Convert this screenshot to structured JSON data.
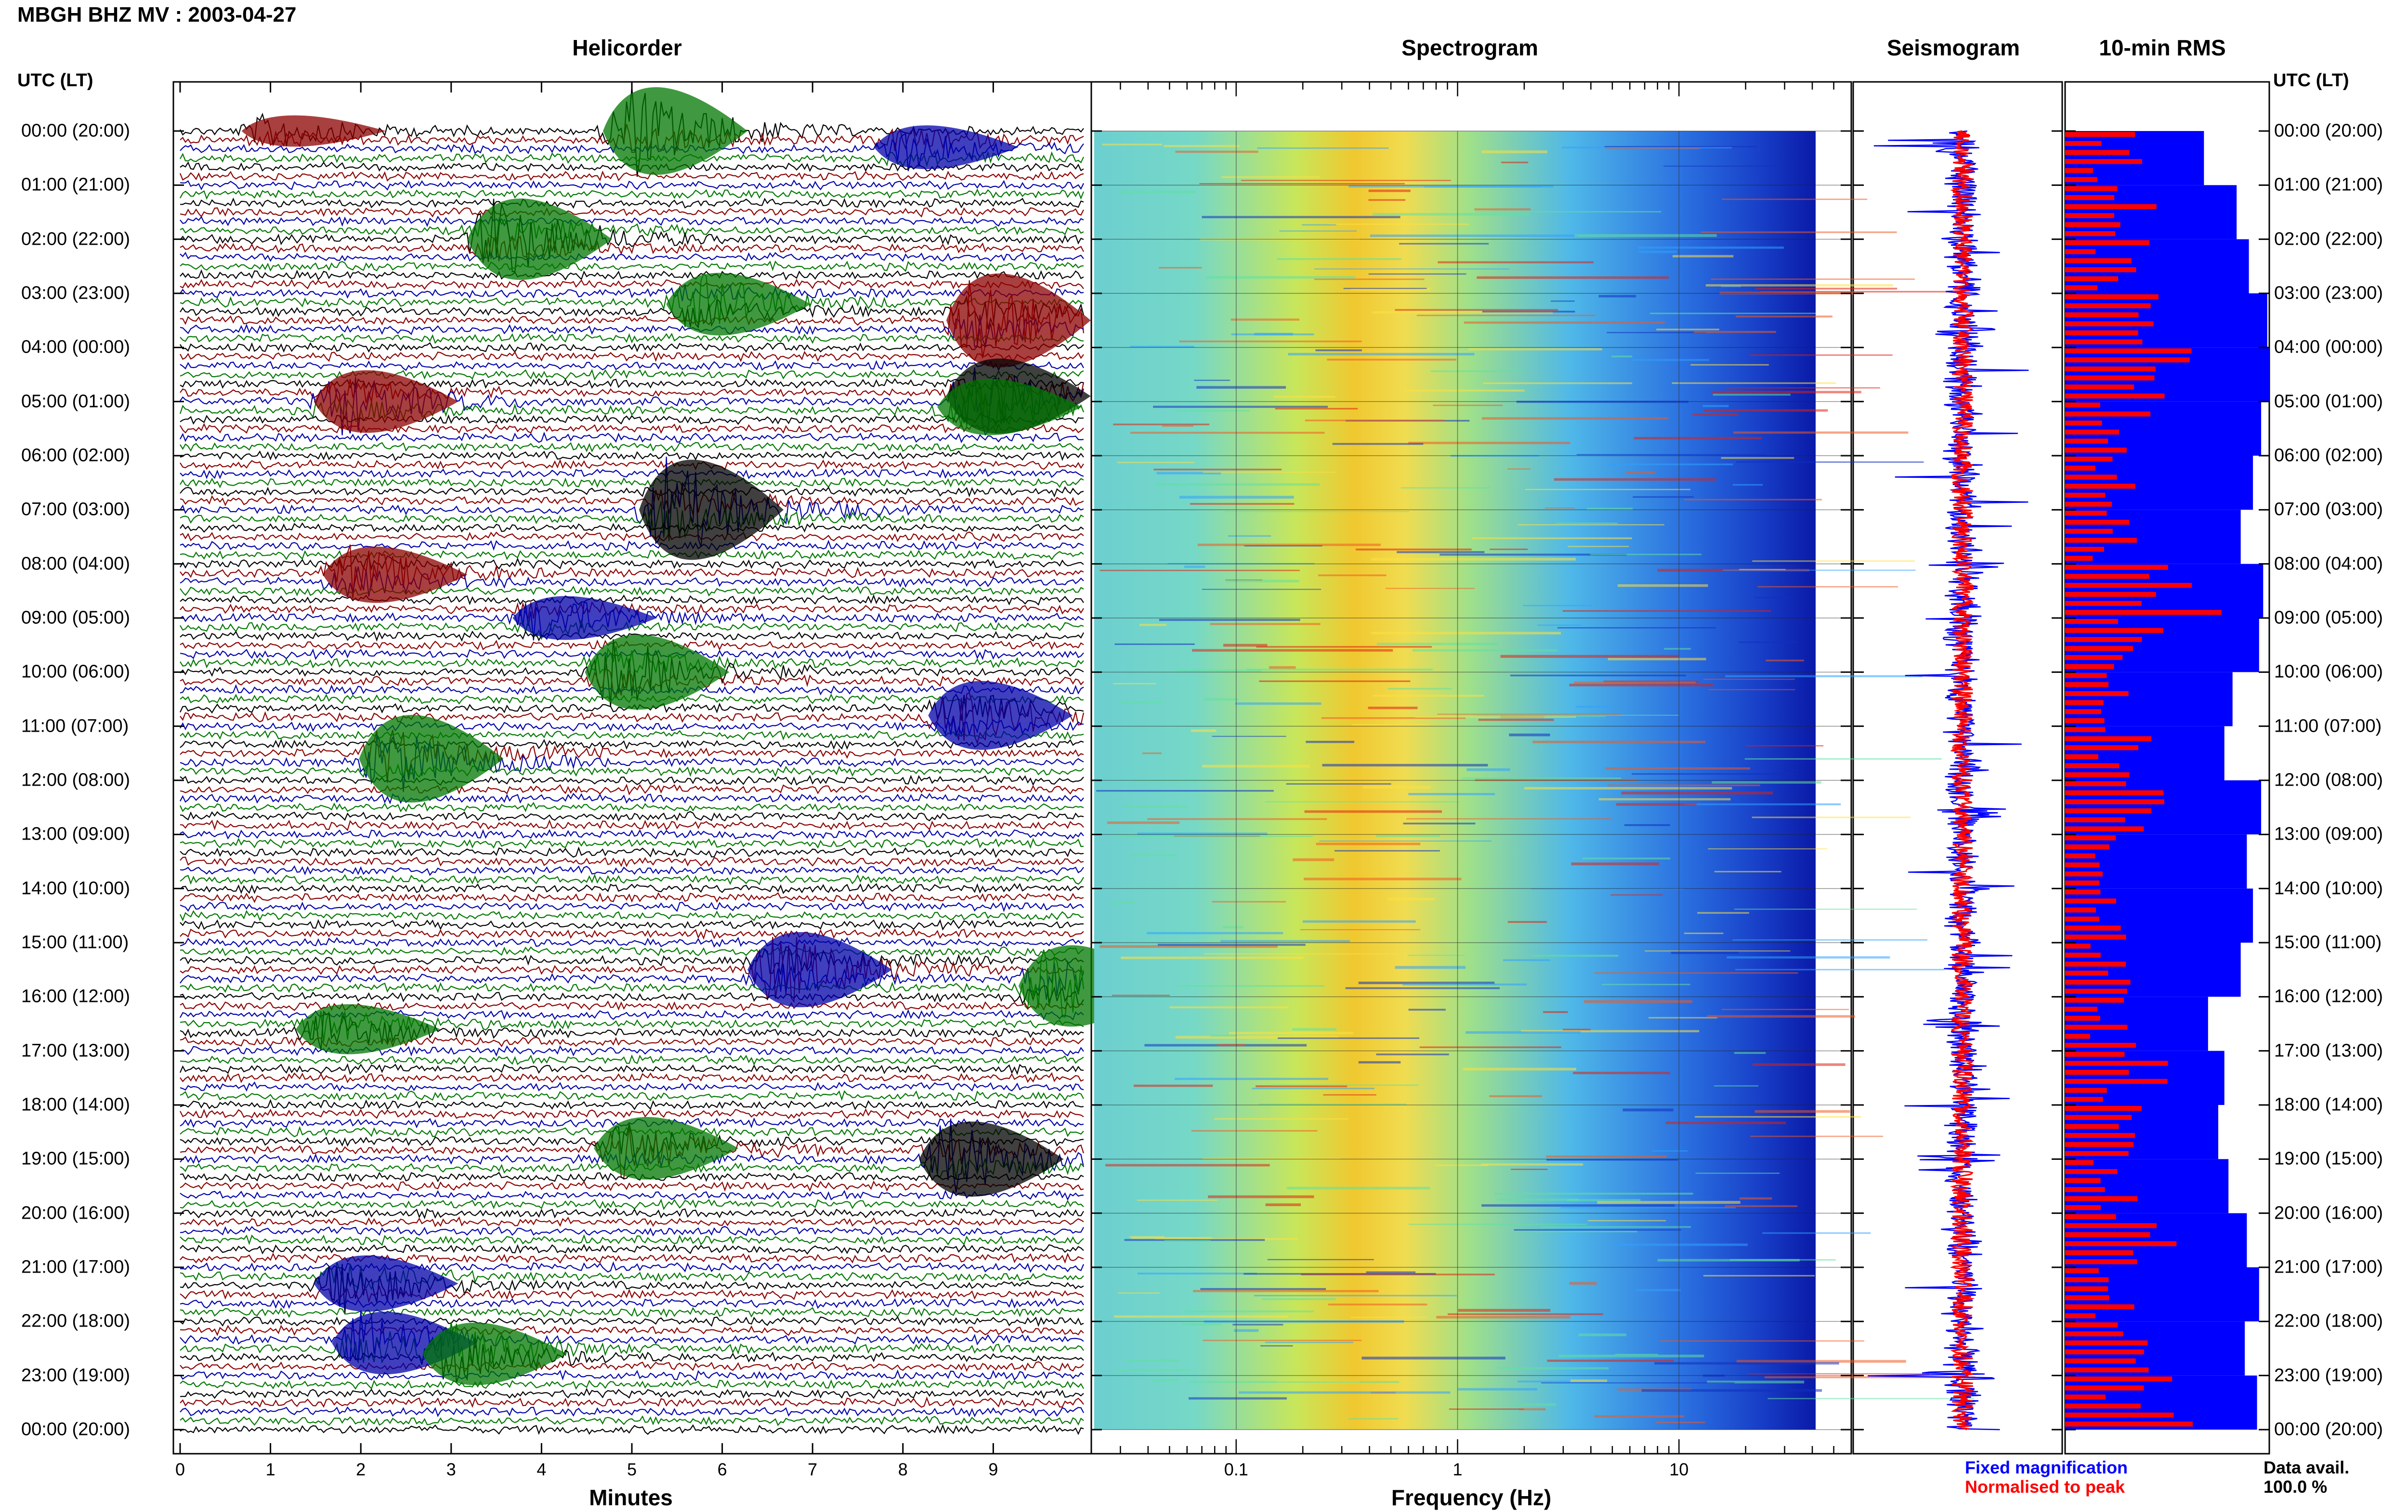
{
  "title": "MBGH BHZ MV : 2003-04-27",
  "panels": {
    "helicorder": "Helicorder",
    "spectrogram": "Spectrogram",
    "seismogram": "Seismogram",
    "rms": "10-min RMS"
  },
  "utc_header": "UTC (LT)",
  "hour_labels": [
    "00:00 (20:00)",
    "01:00 (21:00)",
    "02:00 (22:00)",
    "03:00 (23:00)",
    "04:00 (00:00)",
    "05:00 (01:00)",
    "06:00 (02:00)",
    "07:00 (03:00)",
    "08:00 (04:00)",
    "09:00 (05:00)",
    "10:00 (06:00)",
    "11:00 (07:00)",
    "12:00 (08:00)",
    "13:00 (09:00)",
    "14:00 (10:00)",
    "15:00 (11:00)",
    "16:00 (12:00)",
    "17:00 (13:00)",
    "18:00 (14:00)",
    "19:00 (15:00)",
    "20:00 (16:00)",
    "21:00 (17:00)",
    "22:00 (18:00)",
    "23:00 (19:00)",
    "00:00 (20:00)"
  ],
  "minutes_axis": {
    "label": "Minutes",
    "ticks": [
      "0",
      "1",
      "2",
      "3",
      "4",
      "5",
      "6",
      "7",
      "8",
      "9"
    ]
  },
  "frequency_axis": {
    "label": "Frequency (Hz)",
    "ticks": [
      "0.1",
      "1",
      "10"
    ],
    "scale": "log"
  },
  "legend": {
    "fixed": "Fixed magnification",
    "normalised": "Normalised to peak"
  },
  "data_avail": {
    "label": "Data avail.",
    "value": "100.0 %"
  },
  "colors": {
    "trace_cycle": [
      "#000000",
      "#8b0000",
      "#0000aa",
      "#007700"
    ],
    "fixed": "#0000ff",
    "normalised": "#ff0000"
  },
  "chart_data": {
    "type": "heatmap",
    "station": "MBGH BHZ MV",
    "date": "2003-04-27",
    "hours": 24,
    "helicorder_events": [
      {
        "hour": 0.0,
        "minute": 1.0,
        "color": "#8b0000",
        "amp": 0.5
      },
      {
        "hour": 0.0,
        "minute": 5.0,
        "color": "#007700",
        "amp": 1.4
      },
      {
        "hour": 0.3,
        "minute": 8.0,
        "color": "#0000aa",
        "amp": 0.7
      },
      {
        "hour": 2.0,
        "minute": 3.5,
        "color": "#007700",
        "amp": 1.3
      },
      {
        "hour": 3.5,
        "minute": 8.8,
        "color": "#8b0000",
        "amp": 1.5
      },
      {
        "hour": 3.2,
        "minute": 5.7,
        "color": "#007700",
        "amp": 1.0
      },
      {
        "hour": 5.0,
        "minute": 1.8,
        "color": "#8b0000",
        "amp": 1.0
      },
      {
        "hour": 4.9,
        "minute": 8.8,
        "color": "#000000",
        "amp": 1.2
      },
      {
        "hour": 5.1,
        "minute": 8.7,
        "color": "#007700",
        "amp": 0.9
      },
      {
        "hour": 7.0,
        "minute": 5.4,
        "color": "#000000",
        "amp": 1.6
      },
      {
        "hour": 8.2,
        "minute": 1.9,
        "color": "#8b0000",
        "amp": 0.9
      },
      {
        "hour": 9.0,
        "minute": 4.0,
        "color": "#0000aa",
        "amp": 0.7
      },
      {
        "hour": 10.0,
        "minute": 4.8,
        "color": "#007700",
        "amp": 1.2
      },
      {
        "hour": 10.8,
        "minute": 8.6,
        "color": "#0000aa",
        "amp": 1.1
      },
      {
        "hour": 11.6,
        "minute": 2.3,
        "color": "#007700",
        "amp": 1.4
      },
      {
        "hour": 15.5,
        "minute": 6.6,
        "color": "#0000aa",
        "amp": 1.2
      },
      {
        "hour": 15.8,
        "minute": 9.6,
        "color": "#007700",
        "amp": 1.3
      },
      {
        "hour": 16.6,
        "minute": 1.6,
        "color": "#007700",
        "amp": 0.8
      },
      {
        "hour": 18.8,
        "minute": 4.9,
        "color": "#007700",
        "amp": 1.0
      },
      {
        "hour": 19.0,
        "minute": 8.5,
        "color": "#000000",
        "amp": 1.2
      },
      {
        "hour": 21.3,
        "minute": 1.8,
        "color": "#0000aa",
        "amp": 0.9
      },
      {
        "hour": 22.4,
        "minute": 2.0,
        "color": "#0000aa",
        "amp": 1.0
      },
      {
        "hour": 22.6,
        "minute": 3.0,
        "color": "#007700",
        "amp": 1.0
      }
    ],
    "seismogram_events_hour": [
      0.3,
      3.7,
      8.0,
      12.6,
      16.5,
      19.0,
      23.0
    ],
    "rms_fixed_fraction": [
      0.68,
      0.84,
      0.9,
      0.99,
      1.0,
      0.96,
      0.92,
      0.86,
      0.97,
      0.95,
      0.82,
      0.78,
      0.96,
      0.89,
      0.92,
      0.86,
      0.7,
      0.78,
      0.75,
      0.8,
      0.89,
      0.95,
      0.88,
      0.94
    ],
    "rms_normalised_fraction": [
      0.33,
      0.42,
      0.38,
      0.4,
      0.62,
      0.37,
      0.32,
      0.36,
      0.85,
      0.42,
      0.35,
      0.4,
      0.48,
      0.3,
      0.3,
      0.28,
      0.31,
      0.45,
      0.33,
      0.38,
      0.48,
      0.32,
      0.38,
      0.55
    ]
  }
}
